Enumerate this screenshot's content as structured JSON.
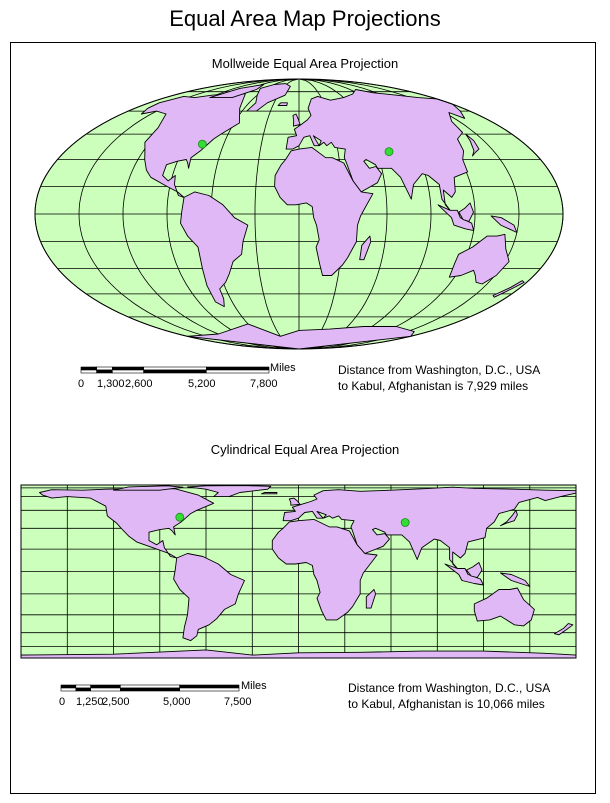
{
  "title": "Equal Area Map Projections",
  "colors": {
    "ocean": "#ccffbb",
    "land": "#e0b8f5",
    "grid": "#000000",
    "city_marker": "#33dd33"
  },
  "maps": [
    {
      "title": "Mollweide Equal Area Projection",
      "projection": "mollweide",
      "scale_bar": {
        "units": "Miles",
        "ticks": [
          "0",
          "1,300",
          "2,600",
          "5,200",
          "7,800"
        ],
        "tick_values": [
          0,
          1300,
          2600,
          5200,
          7800
        ]
      },
      "distance_line1": "Distance from Washington, D.C., USA",
      "distance_line2": "to Kabul, Afghanistan is 7,929 miles"
    },
    {
      "title": "Cylindrical Equal Area Projection",
      "projection": "cylindrical-equal-area",
      "scale_bar": {
        "units": "Miles",
        "ticks": [
          "0",
          "1,250",
          "2,500",
          "5,000",
          "7,500"
        ],
        "tick_values": [
          0,
          1250,
          2500,
          5000,
          7500
        ]
      },
      "distance_line1": "Distance from Washington, D.C., USA",
      "distance_line2": "to Kabul, Afghanistan is 10,066 miles"
    }
  ],
  "cities": [
    {
      "name": "Washington, D.C.",
      "lon": -77.0,
      "lat": 38.9
    },
    {
      "name": "Kabul",
      "lon": 69.2,
      "lat": 34.5
    }
  ]
}
